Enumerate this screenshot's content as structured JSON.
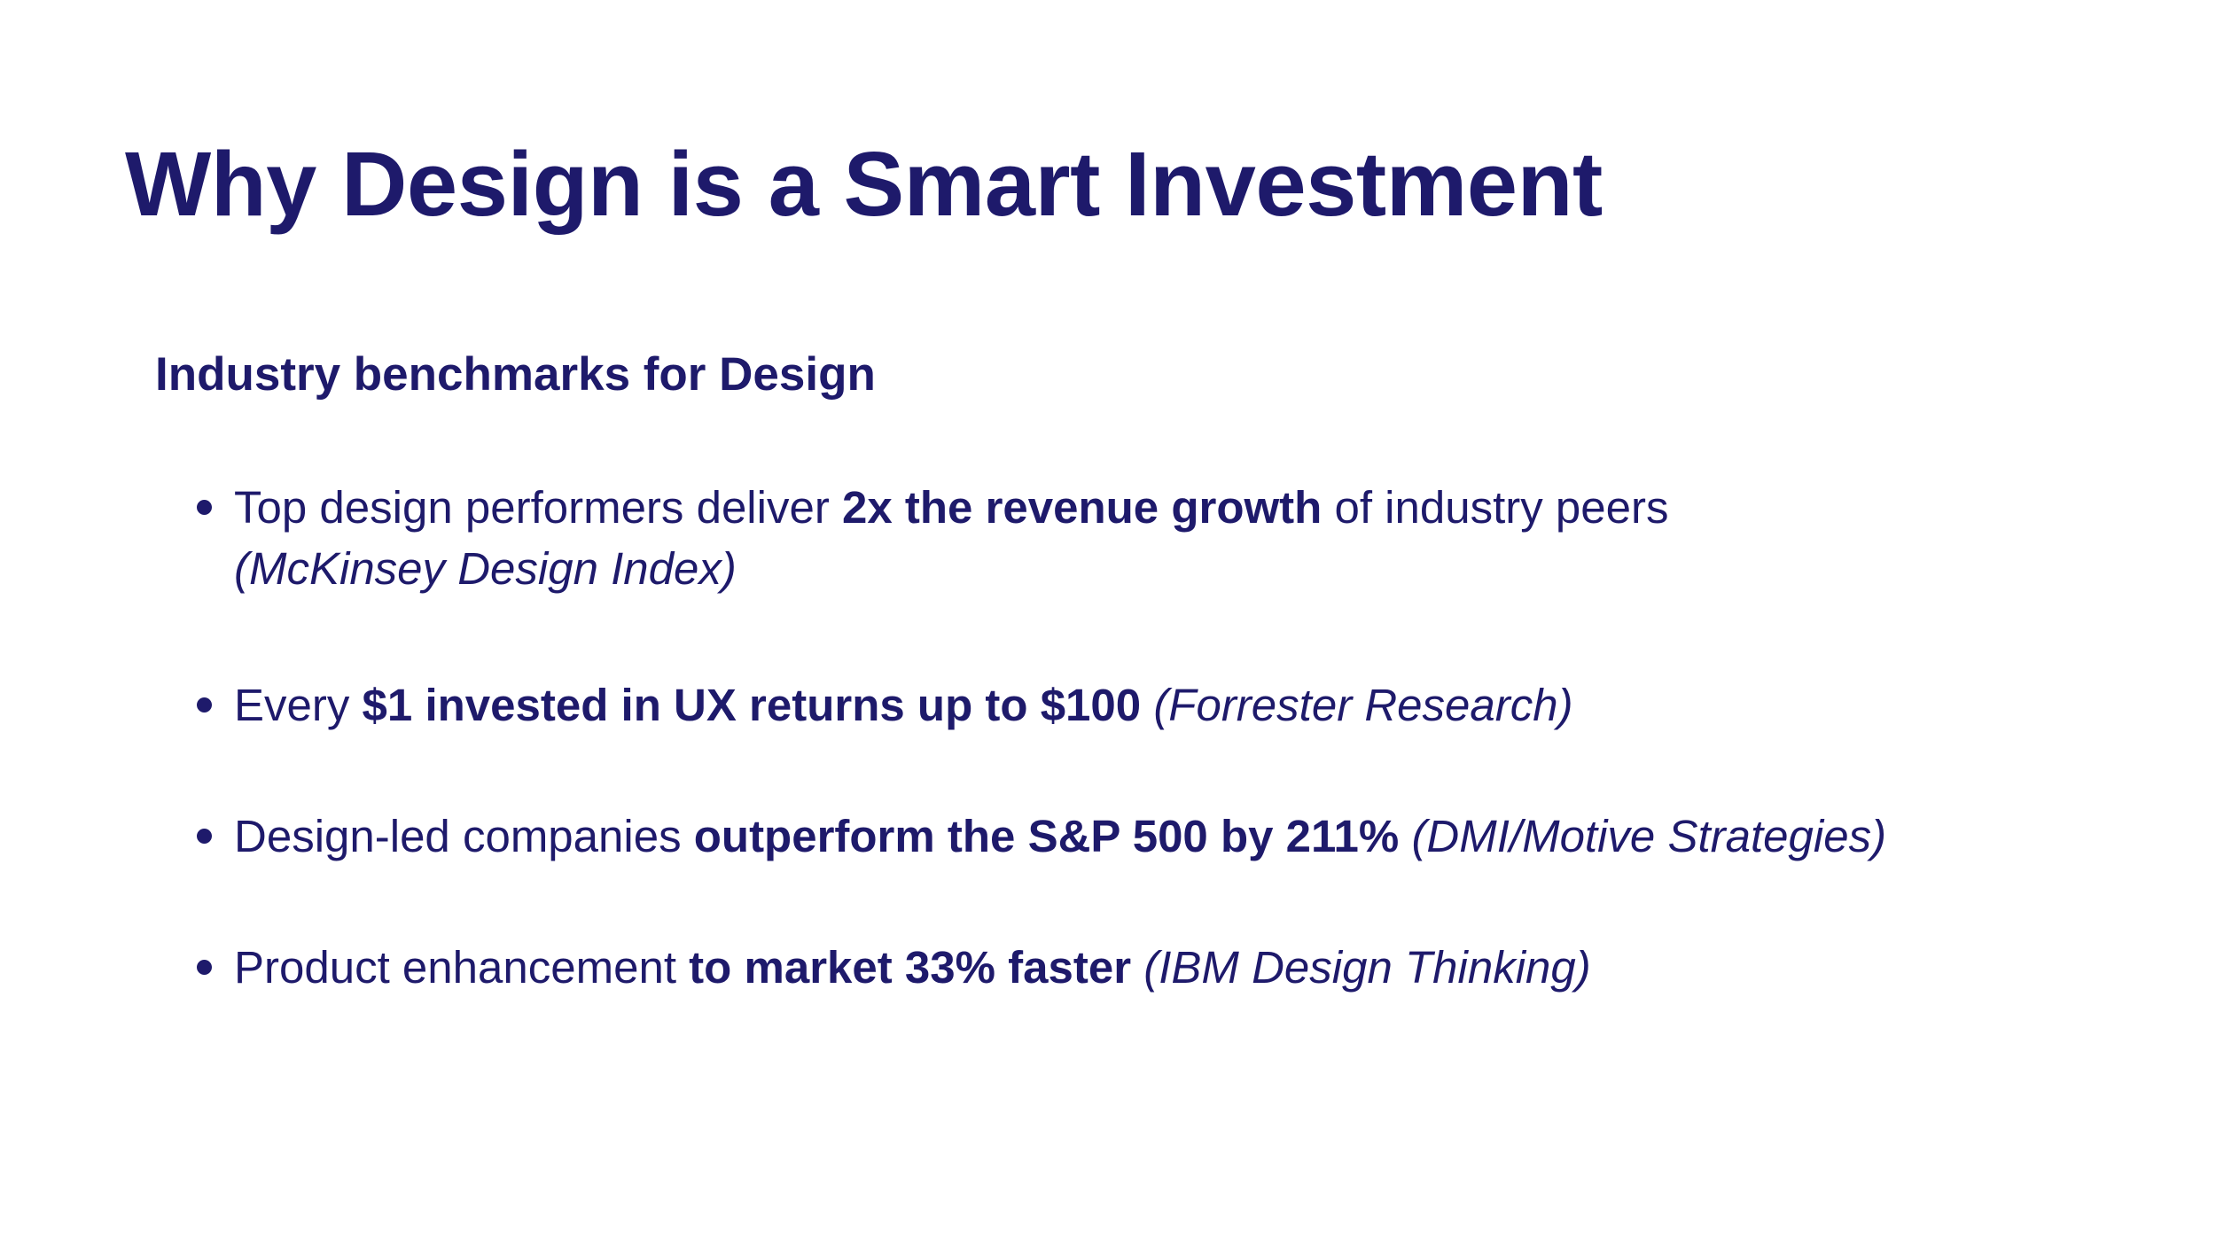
{
  "slide": {
    "title": "Why Design is a Smart Investment",
    "subheading": "Industry benchmarks for Design",
    "text_color": "#1e1a6b",
    "background_color": "#ffffff",
    "bullets": [
      {
        "lead": "Top design performers deliver ",
        "emphasis": "2x the revenue growth",
        "trail": " of industry peers",
        "source": "(McKinsey Design Index)"
      },
      {
        "lead": "Every ",
        "emphasis": "$1 invested in UX returns up to $100",
        "trail": " ",
        "source": "(Forrester Research)"
      },
      {
        "lead": "Design-led companies ",
        "emphasis": "outperform the S&P 500 by 211%",
        "trail": " ",
        "source": "(DMI/Motive Strategies)"
      },
      {
        "lead": "Product enhancement ",
        "emphasis": "to market 33% faster",
        "trail": " ",
        "source": "(IBM Design Thinking)"
      }
    ]
  }
}
